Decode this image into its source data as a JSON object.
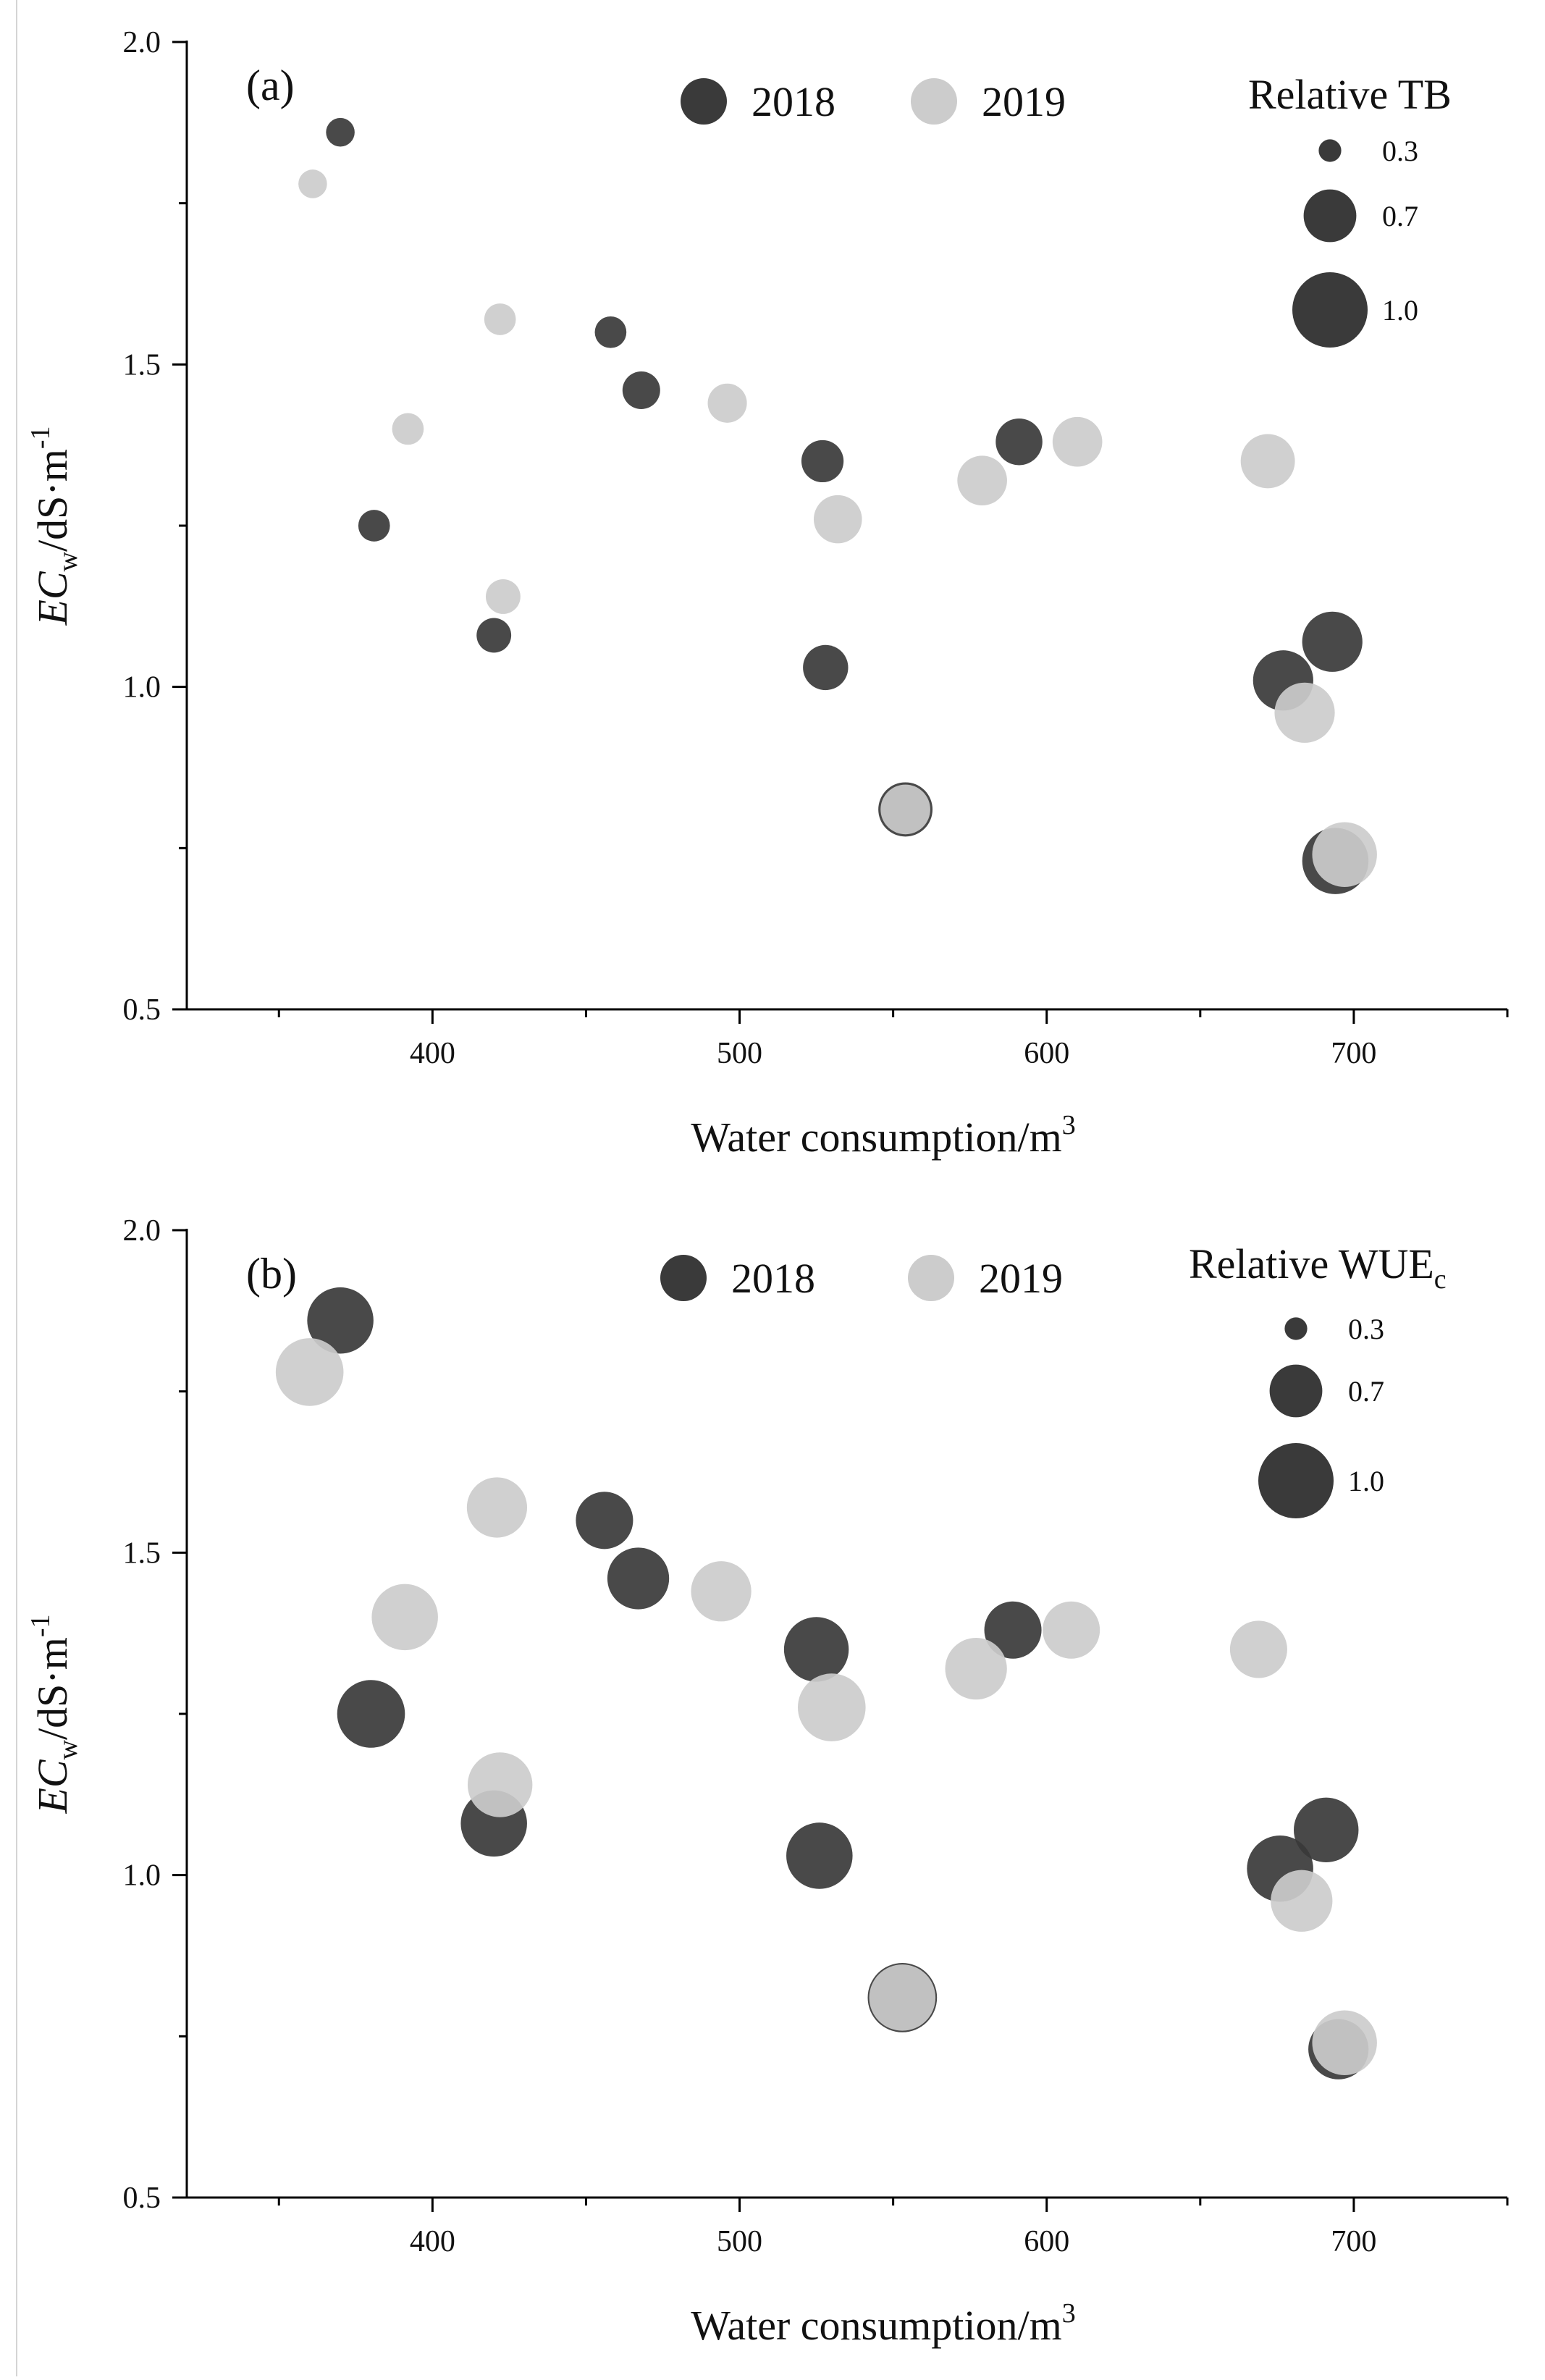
{
  "chart_data": [
    {
      "type": "scatter",
      "panel_label": "(a)",
      "xlabel": "Water consumption/m",
      "xlabel_sup": "3",
      "ylabel_main": "EC",
      "ylabel_sub": "w",
      "ylabel_unit": "/dS·m",
      "ylabel_sup": "-1",
      "xlim": [
        320,
        750
      ],
      "ylim": [
        0.5,
        2.0
      ],
      "x_ticks": [
        400,
        500,
        600,
        700
      ],
      "x_tick_labels": [
        "400",
        "500",
        "600",
        "700"
      ],
      "y_ticks": [
        0.5,
        1.0,
        1.5,
        2.0
      ],
      "y_tick_labels": [
        "0.5",
        "1.0",
        "1.5",
        "2.0"
      ],
      "size_legend": {
        "title": "Relative TB",
        "title_sub": "",
        "values": [
          0.3,
          0.7,
          1.0
        ],
        "labels": [
          "0.3",
          "0.7",
          "1.0"
        ]
      },
      "series": [
        {
          "name": "2018",
          "color": "#3a3a3a",
          "points": [
            {
              "x": 370,
              "y": 1.86,
              "size": 0.38
            },
            {
              "x": 381,
              "y": 1.25,
              "size": 0.42
            },
            {
              "x": 420,
              "y": 1.08,
              "size": 0.46
            },
            {
              "x": 458,
              "y": 1.55,
              "size": 0.42
            },
            {
              "x": 468,
              "y": 1.46,
              "size": 0.5
            },
            {
              "x": 527,
              "y": 1.35,
              "size": 0.56
            },
            {
              "x": 528,
              "y": 1.03,
              "size": 0.6
            },
            {
              "x": 554,
              "y": 0.81,
              "size": 0.72
            },
            {
              "x": 591,
              "y": 1.38,
              "size": 0.62
            },
            {
              "x": 677,
              "y": 1.01,
              "size": 0.8
            },
            {
              "x": 693,
              "y": 1.07,
              "size": 0.8
            },
            {
              "x": 694,
              "y": 0.73,
              "size": 0.88
            }
          ]
        },
        {
          "name": "2019",
          "color": "#cccccc",
          "points": [
            {
              "x": 361,
              "y": 1.78,
              "size": 0.38
            },
            {
              "x": 392,
              "y": 1.4,
              "size": 0.42
            },
            {
              "x": 422,
              "y": 1.57,
              "size": 0.42
            },
            {
              "x": 423,
              "y": 1.14,
              "size": 0.46
            },
            {
              "x": 496,
              "y": 1.44,
              "size": 0.52
            },
            {
              "x": 532,
              "y": 1.26,
              "size": 0.64
            },
            {
              "x": 554,
              "y": 0.81,
              "size": 0.66
            },
            {
              "x": 579,
              "y": 1.32,
              "size": 0.66
            },
            {
              "x": 610,
              "y": 1.38,
              "size": 0.66
            },
            {
              "x": 672,
              "y": 1.35,
              "size": 0.72
            },
            {
              "x": 684,
              "y": 0.96,
              "size": 0.8
            },
            {
              "x": 697,
              "y": 0.74,
              "size": 0.86
            }
          ]
        }
      ]
    },
    {
      "type": "scatter",
      "panel_label": "(b)",
      "xlabel": "Water consumption/m",
      "xlabel_sup": "3",
      "ylabel_main": "EC",
      "ylabel_sub": "w",
      "ylabel_unit": "/dS·m",
      "ylabel_sup": "-1",
      "xlim": [
        320,
        750
      ],
      "ylim": [
        0.5,
        2.0
      ],
      "x_ticks": [
        400,
        500,
        600,
        700
      ],
      "x_tick_labels": [
        "400",
        "500",
        "600",
        "700"
      ],
      "y_ticks": [
        0.5,
        1.0,
        1.5,
        2.0
      ],
      "y_tick_labels": [
        "0.5",
        "1.0",
        "1.5",
        "2.0"
      ],
      "size_legend": {
        "title": "Relative WUE",
        "title_sub": "c",
        "values": [
          0.3,
          0.7,
          1.0
        ],
        "labels": [
          "0.3",
          "0.7",
          "1.0"
        ]
      },
      "series": [
        {
          "name": "2018",
          "color": "#3a3a3a",
          "points": [
            {
              "x": 370,
              "y": 1.86,
              "size": 0.88
            },
            {
              "x": 380,
              "y": 1.25,
              "size": 0.9
            },
            {
              "x": 420,
              "y": 1.08,
              "size": 0.88
            },
            {
              "x": 456,
              "y": 1.55,
              "size": 0.76
            },
            {
              "x": 467,
              "y": 1.46,
              "size": 0.82
            },
            {
              "x": 525,
              "y": 1.35,
              "size": 0.86
            },
            {
              "x": 526,
              "y": 1.03,
              "size": 0.88
            },
            {
              "x": 553,
              "y": 0.81,
              "size": 0.92
            },
            {
              "x": 589,
              "y": 1.38,
              "size": 0.76
            },
            {
              "x": 676,
              "y": 1.01,
              "size": 0.88
            },
            {
              "x": 691,
              "y": 1.07,
              "size": 0.86
            },
            {
              "x": 695,
              "y": 0.73,
              "size": 0.8
            }
          ]
        },
        {
          "name": "2019",
          "color": "#cccccc",
          "points": [
            {
              "x": 360,
              "y": 1.78,
              "size": 0.9
            },
            {
              "x": 391,
              "y": 1.4,
              "size": 0.88
            },
            {
              "x": 421,
              "y": 1.57,
              "size": 0.8
            },
            {
              "x": 422,
              "y": 1.14,
              "size": 0.86
            },
            {
              "x": 494,
              "y": 1.44,
              "size": 0.8
            },
            {
              "x": 530,
              "y": 1.26,
              "size": 0.9
            },
            {
              "x": 553,
              "y": 0.81,
              "size": 0.88
            },
            {
              "x": 577,
              "y": 1.32,
              "size": 0.82
            },
            {
              "x": 608,
              "y": 1.38,
              "size": 0.76
            },
            {
              "x": 669,
              "y": 1.35,
              "size": 0.76
            },
            {
              "x": 683,
              "y": 0.96,
              "size": 0.82
            },
            {
              "x": 697,
              "y": 0.74,
              "size": 0.86
            }
          ]
        }
      ]
    }
  ]
}
